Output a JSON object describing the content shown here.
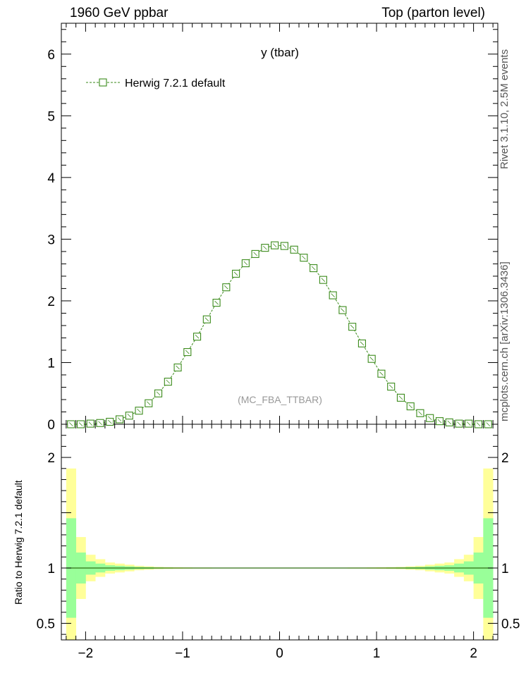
{
  "header": {
    "left": "1960 GeV ppbar",
    "right": "Top (parton level)"
  },
  "side_labels": {
    "rivet": "Rivet 3.1.10, 2.5M events",
    "mcplots": "mcplots.cern.ch [arXiv:1306.3436]"
  },
  "ratio_ylabel": "Ratio to Herwig 7.2.1 default",
  "chart_data": [
    {
      "type": "line",
      "title": "y (tbar)",
      "watermark": "(MC_FBA_TTBAR)",
      "xlim": [
        -2.25,
        2.25
      ],
      "ylim": [
        0,
        6.5
      ],
      "yticks": [
        0,
        1,
        2,
        3,
        4,
        5,
        6
      ],
      "xticks": [
        -2,
        -1,
        0,
        1,
        2
      ],
      "legend_position": "top-left",
      "series": [
        {
          "name": "Herwig 7.2.1 default",
          "color": "#3a8a1a",
          "marker": "open-square",
          "x": [
            -2.15,
            -2.05,
            -1.95,
            -1.85,
            -1.75,
            -1.65,
            -1.55,
            -1.45,
            -1.35,
            -1.25,
            -1.15,
            -1.05,
            -0.95,
            -0.85,
            -0.75,
            -0.65,
            -0.55,
            -0.45,
            -0.35,
            -0.25,
            -0.15,
            -0.05,
            0.05,
            0.15,
            0.25,
            0.35,
            0.45,
            0.55,
            0.65,
            0.75,
            0.85,
            0.95,
            1.05,
            1.15,
            1.25,
            1.35,
            1.45,
            1.55,
            1.65,
            1.75,
            1.85,
            1.95,
            2.05,
            2.15
          ],
          "y": [
            0.0,
            0.0,
            0.01,
            0.02,
            0.04,
            0.08,
            0.14,
            0.22,
            0.34,
            0.5,
            0.69,
            0.92,
            1.17,
            1.42,
            1.7,
            1.97,
            2.22,
            2.44,
            2.61,
            2.76,
            2.86,
            2.9,
            2.89,
            2.83,
            2.7,
            2.53,
            2.34,
            2.09,
            1.85,
            1.58,
            1.31,
            1.06,
            0.82,
            0.61,
            0.43,
            0.29,
            0.18,
            0.1,
            0.05,
            0.03,
            0.01,
            0.01,
            0.0,
            0.0
          ]
        }
      ]
    },
    {
      "type": "area",
      "title": "",
      "ylabel": "Ratio to Herwig 7.2.1 default",
      "xlim": [
        -2.25,
        2.25
      ],
      "ylim": [
        0.35,
        2.3
      ],
      "yticks": [
        0.5,
        1,
        2
      ],
      "xticks": [
        -2,
        -1,
        0,
        1,
        2
      ],
      "reference_line": 1,
      "bin_edges": [
        -2.2,
        -2.1,
        -2.0,
        -1.9,
        -1.8,
        -1.7,
        -1.6,
        -1.5,
        -1.4,
        -1.3,
        -1.2,
        -1.1,
        -1.0,
        -0.9,
        -0.8,
        -0.7,
        -0.6,
        -0.5,
        -0.4,
        -0.3,
        -0.2,
        -0.1,
        0.0,
        0.1,
        0.2,
        0.3,
        0.4,
        0.5,
        0.6,
        0.7,
        0.8,
        0.9,
        1.0,
        1.1,
        1.2,
        1.3,
        1.4,
        1.5,
        1.6,
        1.7,
        1.8,
        1.9,
        2.0,
        2.1,
        2.2
      ],
      "bands": [
        {
          "name": "outer",
          "color": "#ffff99",
          "half_width": [
            0.9,
            0.28,
            0.12,
            0.08,
            0.05,
            0.04,
            0.03,
            0.02,
            0.015,
            0.01,
            0.008,
            0.006,
            0.005,
            0.004,
            0.004,
            0.003,
            0.003,
            0.003,
            0.002,
            0.002,
            0.002,
            0.002,
            0.002,
            0.002,
            0.002,
            0.002,
            0.003,
            0.003,
            0.003,
            0.004,
            0.004,
            0.005,
            0.006,
            0.008,
            0.01,
            0.015,
            0.02,
            0.03,
            0.04,
            0.05,
            0.08,
            0.12,
            0.28,
            0.9
          ]
        },
        {
          "name": "inner",
          "color": "#99ff99",
          "half_width": [
            0.45,
            0.14,
            0.06,
            0.04,
            0.025,
            0.02,
            0.015,
            0.01,
            0.008,
            0.005,
            0.004,
            0.003,
            0.0025,
            0.002,
            0.002,
            0.0015,
            0.0015,
            0.0015,
            0.001,
            0.001,
            0.001,
            0.001,
            0.001,
            0.001,
            0.001,
            0.001,
            0.0015,
            0.0015,
            0.0015,
            0.002,
            0.002,
            0.0025,
            0.003,
            0.004,
            0.005,
            0.008,
            0.01,
            0.015,
            0.02,
            0.025,
            0.04,
            0.06,
            0.14,
            0.45
          ]
        }
      ]
    }
  ]
}
